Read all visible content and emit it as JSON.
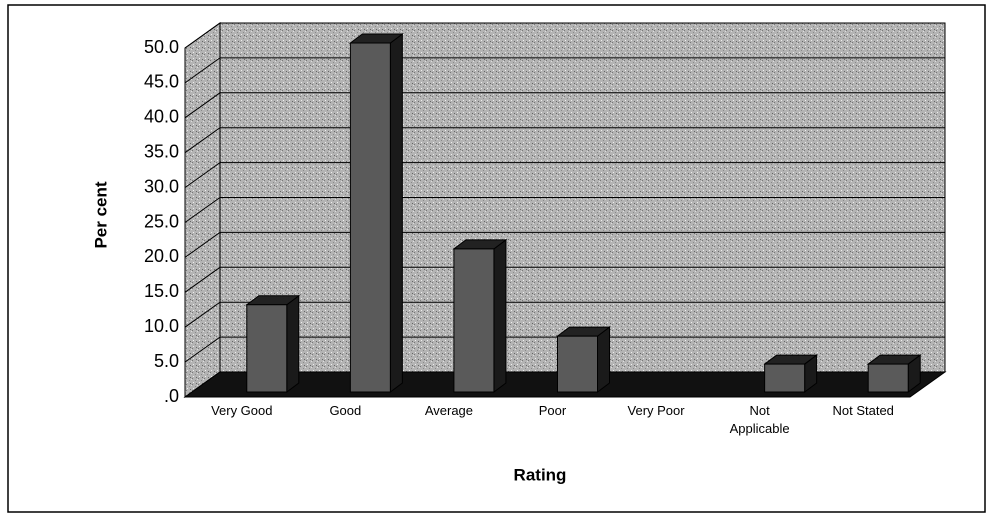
{
  "chart_data": {
    "type": "bar3d",
    "x_label": "Rating",
    "y_label": "Per cent",
    "categories": [
      "Very Good",
      "Good",
      "Average",
      "Poor",
      "Very Poor",
      "Not Applicable",
      "Not Stated"
    ],
    "values": [
      12.5,
      50.0,
      20.5,
      8.0,
      0,
      4.0,
      4.0
    ],
    "color": "#5a5a5a",
    "ylim": [
      0,
      50
    ],
    "yticks": [
      {
        "value": 0,
        "label": ".0"
      },
      {
        "value": 5,
        "label": "5.0"
      },
      {
        "value": 10,
        "label": "10.0"
      },
      {
        "value": 15,
        "label": "15.0"
      },
      {
        "value": 20,
        "label": "20.0"
      },
      {
        "value": 25,
        "label": "25.0"
      },
      {
        "value": 30,
        "label": "30.0"
      },
      {
        "value": 35,
        "label": "35.0"
      },
      {
        "value": 40,
        "label": "40.0"
      },
      {
        "value": 45,
        "label": "45.0"
      },
      {
        "value": 50,
        "label": "50.0"
      }
    ],
    "grid": true
  }
}
